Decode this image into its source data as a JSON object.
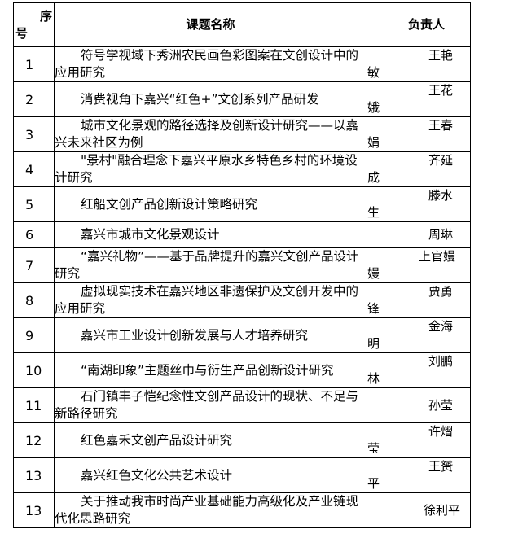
{
  "header": {
    "seq": "序号",
    "title": "课题名称",
    "owner": "负责人"
  },
  "rows": [
    {
      "seq": "1",
      "title": "符号学视域下秀洲农民画色彩图案在文创设计中的应用研究",
      "owner": "王艳敏"
    },
    {
      "seq": "2",
      "title": "消费视角下嘉兴“红色+”文创系列产品研发",
      "owner": "王花娥"
    },
    {
      "seq": "3",
      "title": "城市文化景观的路径选择及创新设计研究——以嘉兴未来社区为例",
      "owner": "王春娟"
    },
    {
      "seq": "4",
      "title": "\"景村\"融合理念下嘉兴平原水乡特色乡村的环境设计研究",
      "owner": "齐延成"
    },
    {
      "seq": "5",
      "title": "红船文创产品创新设计策略研究",
      "owner": "滕水生"
    },
    {
      "seq": "6",
      "title": "嘉兴市城市文化景观设计",
      "owner": "周琳"
    },
    {
      "seq": "7",
      "title": "“嘉兴礼物”——基于品牌提升的嘉兴文创产品设计研究",
      "owner": "上官嫚嫚"
    },
    {
      "seq": "8",
      "title": "虚拟现实技术在嘉兴地区非遗保护及文创开发中的应用研究",
      "owner": "贾勇锋"
    },
    {
      "seq": "9",
      "title": "嘉兴市工业设计创新发展与人才培养研究",
      "owner": "金海明"
    },
    {
      "seq": "10",
      "title": "“南湖印象”主题丝巾与衍生产品创新设计研究",
      "owner": "刘鹏林"
    },
    {
      "seq": "11",
      "title": "石门镇丰子恺纪念性文创产品设计的现状、不足与新路径研究",
      "owner": "孙莹"
    },
    {
      "seq": "12",
      "title": "红色嘉禾文创产品设计研究",
      "owner": "许熠莹"
    },
    {
      "seq": "13",
      "title": "嘉兴红色文化公共艺术设计",
      "owner": "王赟平"
    },
    {
      "seq": "13",
      "title": "关于推动我市时尚产业基础能力高级化及产业链现代化思路研究",
      "owner": "徐利平"
    }
  ]
}
